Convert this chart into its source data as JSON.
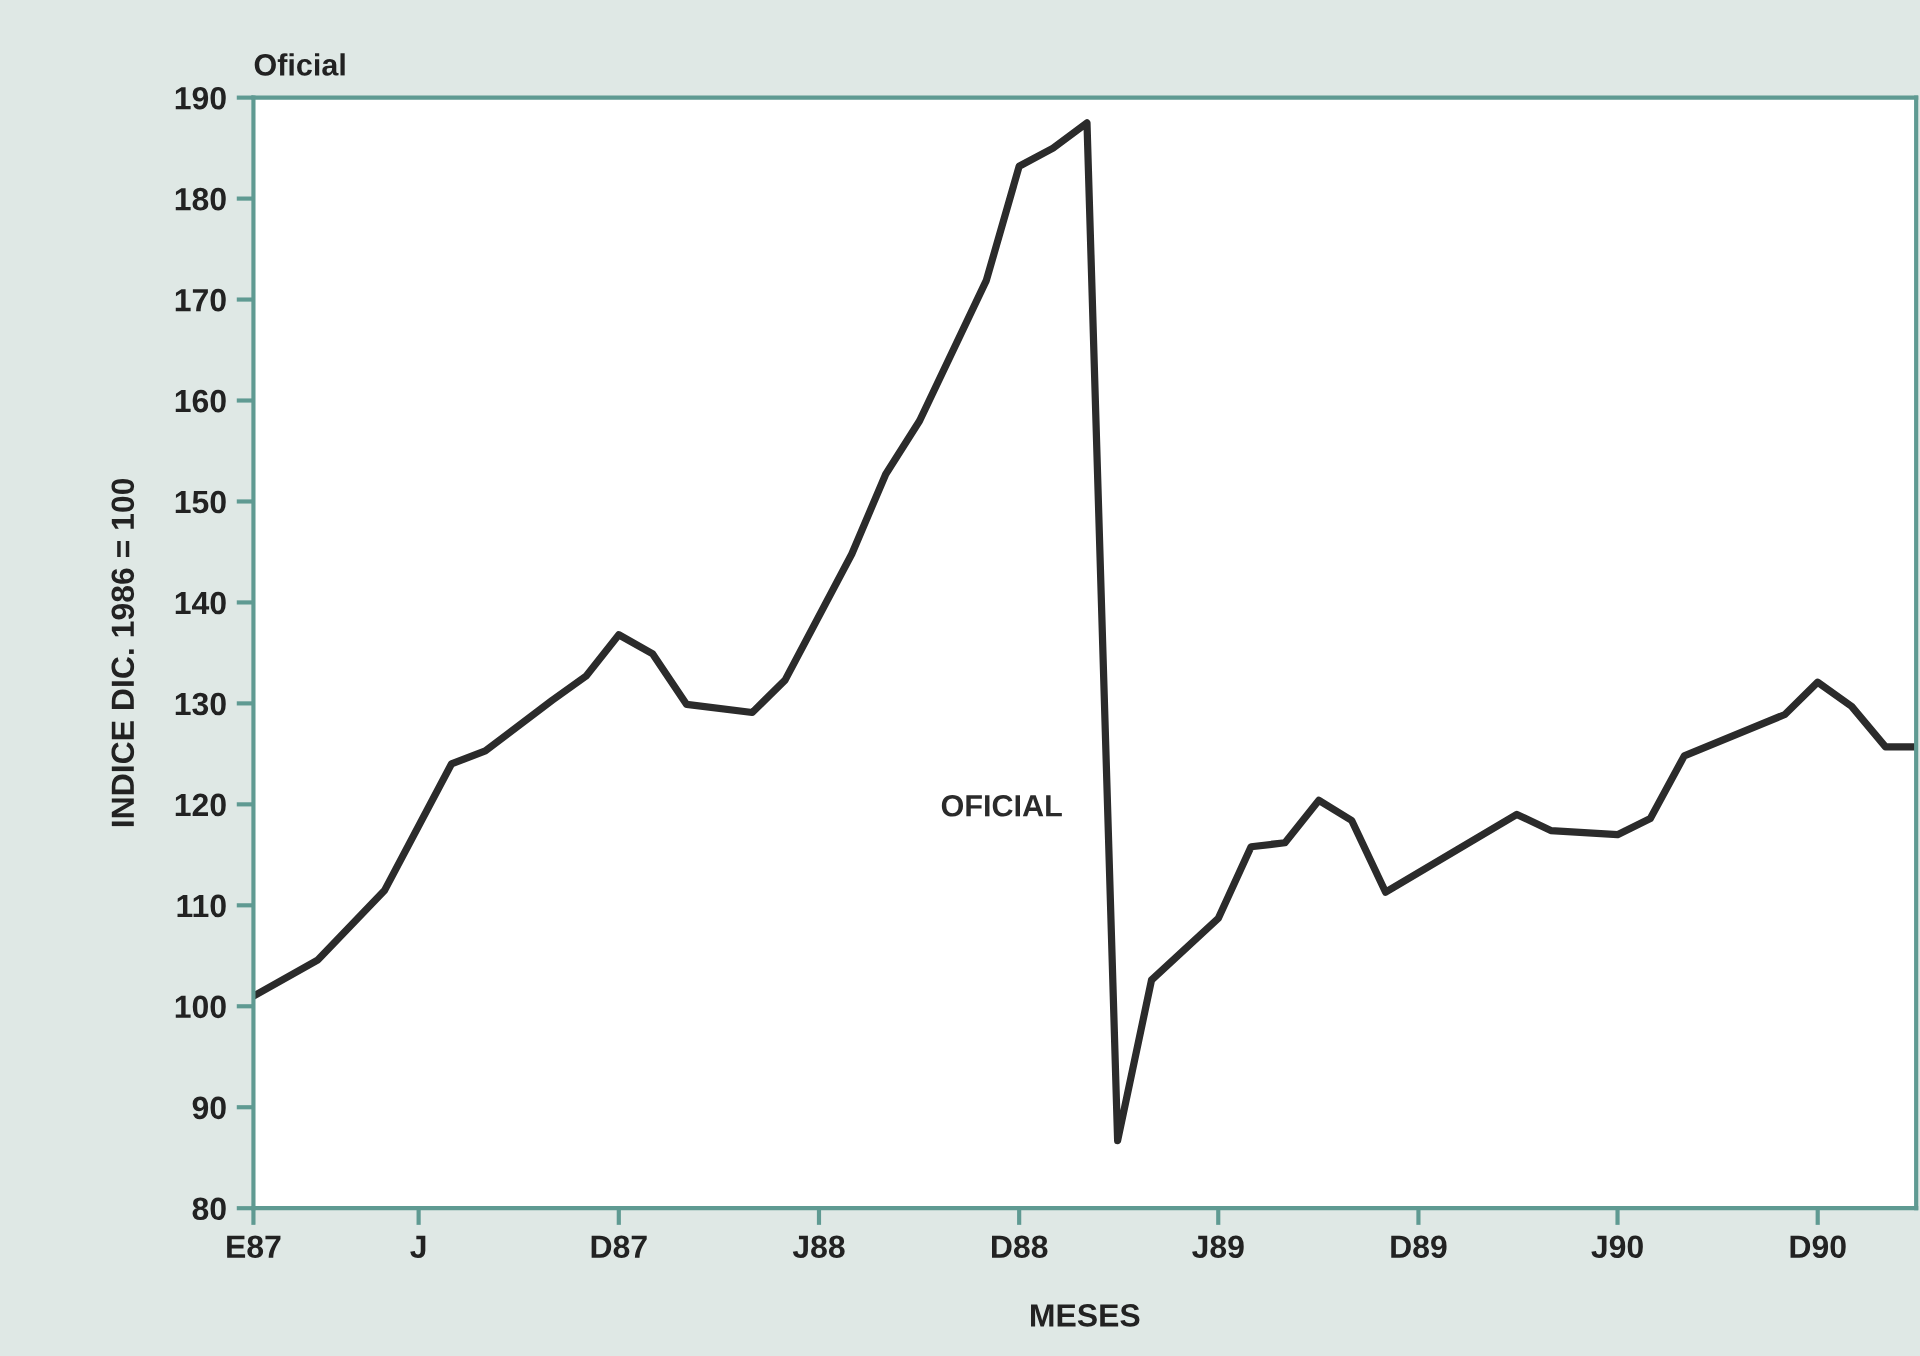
{
  "chart_data": {
    "type": "line",
    "title": "Oficial",
    "xlabel": "MESES",
    "ylabel": "INDICE DIC. 1986 = 100",
    "x": [
      "1987-01",
      "1987-03",
      "1987-05",
      "1987-07",
      "1987-08",
      "1987-10",
      "1987-11",
      "1987-12",
      "1988-01",
      "1988-02",
      "1988-04",
      "1988-05",
      "1988-07",
      "1988-08",
      "1988-09",
      "1988-11",
      "1988-12",
      "1989-01",
      "1989-02",
      "1989-03",
      "1989-04",
      "1989-06",
      "1989-07",
      "1989-08",
      "1989-09",
      "1989-10",
      "1989-11",
      "1990-03",
      "1990-04",
      "1990-06",
      "1990-07",
      "1990-08",
      "1990-11",
      "1990-12",
      "1991-01",
      "1991-02",
      "1991-03"
    ],
    "series": [
      {
        "name": "OFICIAL",
        "color": "#2b2b2b",
        "values": [
          101,
          104.6,
          111.5,
          124,
          125.3,
          130.3,
          132.7,
          136.8,
          134.9,
          129.9,
          129.1,
          132.3,
          144.8,
          152.7,
          158,
          171.9,
          183.2,
          185,
          187.5,
          86.7,
          102.6,
          108.7,
          115.8,
          116.2,
          120.4,
          118.4,
          111.3,
          119,
          117.4,
          117,
          118.6,
          124.8,
          128.9,
          132.1,
          129.7,
          125.7,
          125.7
        ]
      }
    ],
    "xlim": [
      "1987-01",
      "1991-03"
    ],
    "xticks": [
      {
        "value": "1987-01",
        "label": "E87"
      },
      {
        "value": "1987-06",
        "label": "J"
      },
      {
        "value": "1987-12",
        "label": "D87"
      },
      {
        "value": "1988-06",
        "label": "J88"
      },
      {
        "value": "1988-12",
        "label": "D88"
      },
      {
        "value": "1989-06",
        "label": "J89"
      },
      {
        "value": "1989-12",
        "label": "D89"
      },
      {
        "value": "1990-06",
        "label": "J90"
      },
      {
        "value": "1990-12",
        "label": "D90"
      }
    ],
    "ylim": [
      80,
      190
    ],
    "yticks": [
      80,
      90,
      100,
      110,
      120,
      130,
      140,
      150,
      160,
      170,
      180,
      190
    ],
    "grid": false,
    "legend": false,
    "marker": "none",
    "line_style": "solid"
  }
}
